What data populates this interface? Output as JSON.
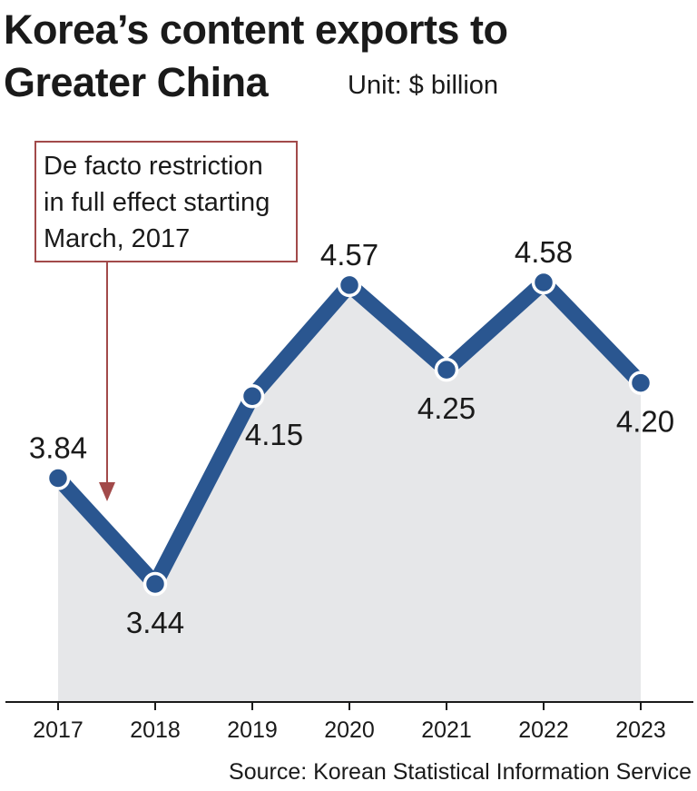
{
  "title_lines": [
    "Korea’s content exports to",
    "Greater China"
  ],
  "unit": "Unit: $ billion",
  "annotation": {
    "lines": [
      "De facto restriction",
      "in full effect starting",
      "March, 2017"
    ]
  },
  "source": "Source: Korean Statistical Information Service",
  "colors": {
    "line": "#2a5690",
    "area": "#e6e7e9",
    "annotation": "#a24a4a",
    "axis": "#1a1a1a"
  },
  "chart_data": {
    "type": "area",
    "title": "Korea’s content exports to Greater China",
    "ylabel": "$ billion",
    "x": [
      "2017",
      "2018",
      "2019",
      "2020",
      "2021",
      "2022",
      "2023"
    ],
    "values": [
      3.84,
      3.44,
      4.15,
      4.57,
      4.25,
      4.58,
      4.2
    ],
    "labels": [
      "3.84",
      "3.44",
      "4.15",
      "4.57",
      "4.25",
      "4.58",
      "4.20"
    ],
    "label_positions": [
      "above",
      "below",
      "below",
      "above",
      "below",
      "above",
      "below"
    ],
    "annotation_year": "2017"
  }
}
